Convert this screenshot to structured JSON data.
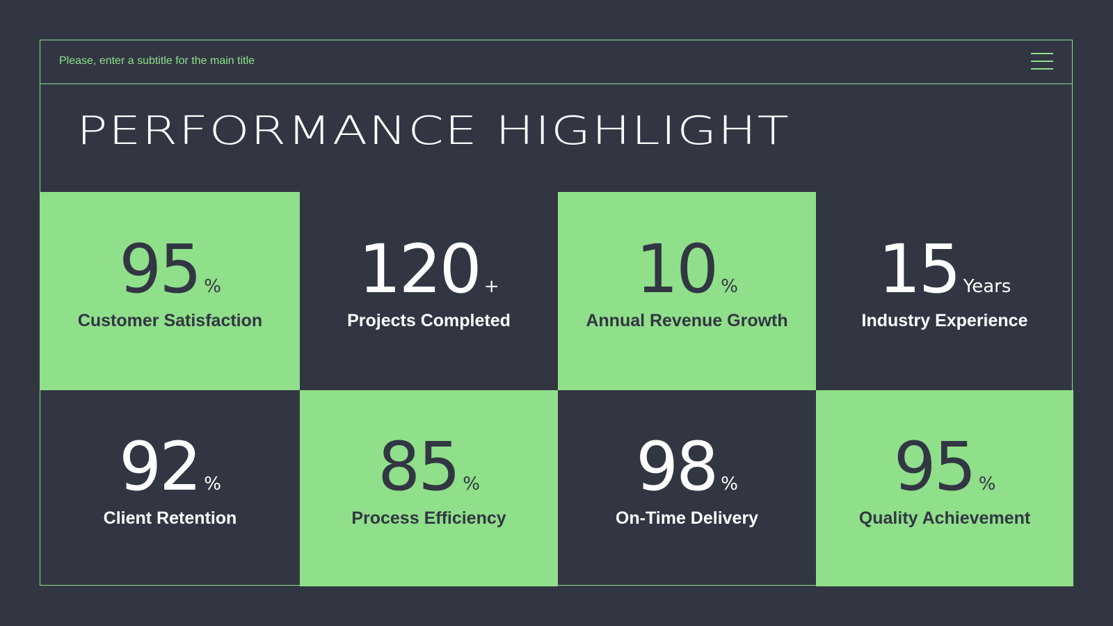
{
  "header": {
    "subtitle": "Please, enter a subtitle for the main title"
  },
  "title": "PERFORMANCE HIGHLIGHT",
  "metrics": [
    {
      "value": 95,
      "unit": "%",
      "label": "Customer Satisfaction"
    },
    {
      "value": 120,
      "unit": "+",
      "label": "Projects Completed"
    },
    {
      "value": 10,
      "unit": "%",
      "label": "Annual Revenue Growth"
    },
    {
      "value": 15,
      "unit": "Years",
      "label": "Industry Experience"
    },
    {
      "value": 92,
      "unit": "%",
      "label": "Client Retention"
    },
    {
      "value": 85,
      "unit": "%",
      "label": "Process Efficiency"
    },
    {
      "value": 98,
      "unit": "%",
      "label": "On-Time Delivery"
    },
    {
      "value": 95,
      "unit": "%",
      "label": "Quality Achievement"
    }
  ]
}
